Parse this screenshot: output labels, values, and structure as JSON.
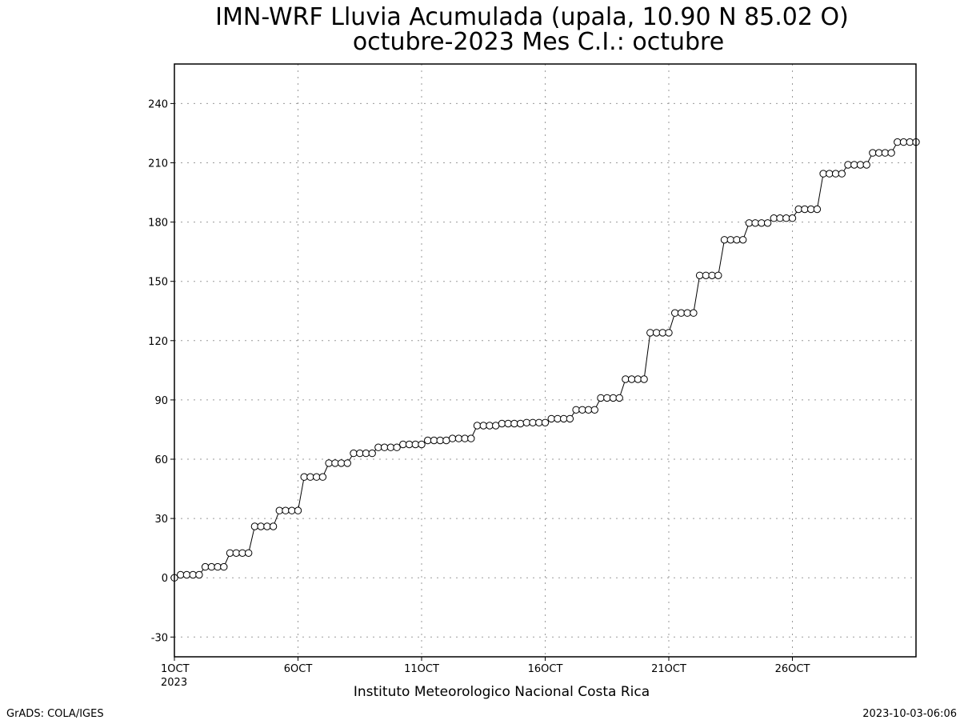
{
  "chart_data": {
    "type": "line",
    "title": "IMN-WRF  Lluvia Acumulada (upala, 10.90  N 85.02  O)",
    "subtitle": "octubre-2023 Mes C.I.: octubre",
    "xlabel": "Instituto Meteorologico Nacional Costa Rica",
    "ylabel": "",
    "x_start_day": 1,
    "x_end_day": 31,
    "x_step_days": 0.25,
    "xlim": [
      1,
      31
    ],
    "ylim": [
      -40,
      260
    ],
    "y_ticks": [
      -30,
      0,
      30,
      60,
      90,
      120,
      150,
      180,
      210,
      240
    ],
    "x_ticks": [
      {
        "day": 1,
        "label": "1OCT",
        "sublabel": "2023"
      },
      {
        "day": 6,
        "label": "6OCT",
        "sublabel": ""
      },
      {
        "day": 11,
        "label": "11OCT",
        "sublabel": ""
      },
      {
        "day": 16,
        "label": "16OCT",
        "sublabel": ""
      },
      {
        "day": 21,
        "label": "21OCT",
        "sublabel": ""
      },
      {
        "day": 26,
        "label": "26OCT",
        "sublabel": ""
      }
    ],
    "grid": true,
    "marker": "open-circle",
    "series": [
      {
        "name": "",
        "values": [
          0,
          1.5,
          1.5,
          1.5,
          1.5,
          5.5,
          5.5,
          5.5,
          5.5,
          12.5,
          12.5,
          12.5,
          12.5,
          26,
          26,
          26,
          26,
          34,
          34,
          34,
          34,
          51,
          51,
          51,
          51,
          58,
          58,
          58,
          58,
          63,
          63,
          63,
          63,
          66,
          66,
          66,
          66,
          67.5,
          67.5,
          67.5,
          67.5,
          69.5,
          69.5,
          69.5,
          69.5,
          70.5,
          70.5,
          70.5,
          70.5,
          77,
          77,
          77,
          77,
          78,
          78,
          78,
          78,
          78.5,
          78.5,
          78.5,
          78.5,
          80.5,
          80.5,
          80.5,
          80.5,
          85,
          85,
          85,
          85,
          91,
          91,
          91,
          91,
          100.5,
          100.5,
          100.5,
          100.5,
          124,
          124,
          124,
          124,
          134,
          134,
          134,
          134,
          153,
          153,
          153,
          153,
          171,
          171,
          171,
          171,
          179.5,
          179.5,
          179.5,
          179.5,
          182,
          182,
          182,
          182,
          186.5,
          186.5,
          186.5,
          186.5,
          204.5,
          204.5,
          204.5,
          204.5,
          209,
          209,
          209,
          209,
          215,
          215,
          215,
          215,
          220.5,
          220.5,
          220.5,
          220.5
        ]
      }
    ]
  },
  "footer": {
    "credit": "GrADS: COLA/IGES",
    "timestamp": "2023-10-03-06:06"
  }
}
